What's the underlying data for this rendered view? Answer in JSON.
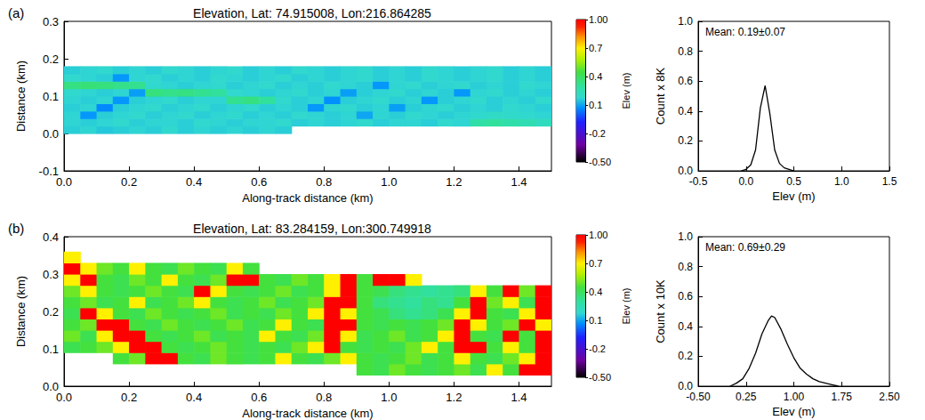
{
  "chart_data": [
    {
      "type": "heatmap",
      "panel": "(a)",
      "title": "Elevation, Lat: 74.915008, Lon:216.864285",
      "xlabel": "Along-track distance (km)",
      "ylabel": "Distance (km)",
      "xlim": [
        0,
        1.5
      ],
      "ylim": [
        -0.1,
        0.3
      ],
      "xticks": [
        {
          "value": 0,
          "label": "0.0"
        },
        0.2,
        0.4,
        0.6,
        0.8,
        {
          "value": 1,
          "label": "1.0"
        },
        1.2,
        1.4
      ],
      "yticks": [
        -0.1,
        {
          "value": 0,
          "label": "0.0"
        },
        0.1,
        0.2,
        0.3
      ],
      "x": [
        0.025,
        0.075,
        0.125,
        0.175,
        0.225,
        0.275,
        0.325,
        0.375,
        0.425,
        0.475,
        0.525,
        0.575,
        0.625,
        0.675,
        0.725,
        0.775,
        0.825,
        0.875,
        0.925,
        0.975,
        1.025,
        1.075,
        1.125,
        1.175,
        1.225,
        1.275,
        1.325,
        1.375,
        1.425,
        1.475
      ],
      "y": [
        0.01,
        0.03,
        0.05,
        0.07,
        0.09,
        0.11,
        0.13,
        0.15,
        0.17
      ],
      "values": [
        [
          0.16,
          0.17,
          0.15,
          0.16,
          0.17,
          0.16,
          0.18,
          0.16,
          0.17,
          0.16,
          0.17,
          0.16,
          0.17,
          0.16,
          null,
          null,
          null,
          null,
          null,
          null,
          null,
          null,
          null,
          null,
          null,
          null,
          null,
          null,
          null,
          null
        ],
        [
          0.17,
          0.16,
          0.17,
          0.18,
          0.16,
          0.17,
          0.17,
          0.16,
          0.18,
          0.17,
          0.16,
          0.17,
          0.17,
          0.18,
          0.16,
          0.17,
          0.16,
          0.17,
          0.18,
          0.16,
          0.17,
          0.17,
          0.16,
          0.18,
          0.17,
          0.28,
          0.3,
          0.27,
          0.25,
          0.22
        ],
        [
          0.17,
          0.08,
          0.16,
          0.17,
          0.18,
          0.16,
          0.17,
          0.18,
          0.16,
          0.17,
          0.18,
          0.16,
          0.17,
          0.16,
          0.18,
          0.17,
          0.16,
          0.17,
          0.1,
          0.17,
          0.16,
          0.18,
          0.17,
          0.16,
          0.17,
          0.18,
          0.2,
          0.19,
          0.18,
          0.17
        ],
        [
          0.16,
          0.17,
          0.06,
          0.16,
          0.17,
          0.18,
          0.16,
          0.17,
          0.18,
          0.16,
          0.17,
          0.18,
          0.16,
          0.17,
          0.16,
          0.08,
          0.17,
          0.18,
          0.16,
          0.17,
          0.09,
          0.16,
          0.17,
          0.18,
          0.16,
          0.17,
          0.16,
          0.18,
          0.17,
          0.16
        ],
        [
          0.17,
          0.16,
          0.17,
          0.08,
          0.16,
          0.17,
          0.18,
          0.16,
          0.17,
          0.17,
          0.32,
          0.34,
          0.3,
          0.18,
          0.16,
          0.17,
          0.07,
          0.16,
          0.17,
          0.18,
          0.16,
          0.17,
          0.08,
          0.16,
          0.17,
          0.18,
          0.16,
          0.17,
          0.16,
          0.18
        ],
        [
          0.18,
          0.17,
          0.16,
          0.17,
          0.09,
          0.35,
          0.33,
          0.34,
          0.32,
          0.3,
          0.18,
          0.17,
          0.16,
          0.17,
          0.18,
          0.16,
          0.17,
          0.09,
          0.16,
          0.17,
          0.18,
          0.16,
          0.17,
          0.16,
          0.08,
          0.17,
          0.18,
          0.16,
          0.17,
          0.16
        ],
        [
          0.34,
          0.36,
          0.35,
          0.33,
          0.32,
          0.18,
          0.17,
          0.16,
          0.17,
          0.18,
          0.16,
          0.17,
          0.18,
          0.16,
          0.17,
          0.16,
          0.18,
          0.17,
          0.16,
          0.08,
          0.17,
          0.18,
          0.16,
          0.17,
          0.18,
          0.16,
          0.17,
          0.16,
          0.18,
          0.17
        ],
        [
          0.18,
          0.17,
          0.16,
          0.08,
          0.17,
          0.18,
          0.16,
          0.17,
          0.16,
          0.18,
          0.17,
          0.16,
          0.17,
          0.18,
          0.16,
          0.17,
          0.16,
          0.17,
          0.18,
          0.16,
          0.17,
          0.16,
          0.18,
          0.17,
          0.16,
          0.17,
          0.18,
          0.16,
          0.17,
          0.16
        ],
        [
          0.16,
          0.17,
          0.18,
          0.16,
          0.17,
          0.16,
          0.18,
          0.17,
          0.16,
          0.17,
          0.18,
          0.16,
          0.17,
          0.16,
          0.18,
          0.17,
          0.16,
          0.17,
          0.18,
          0.16,
          0.17,
          0.16,
          0.18,
          0.17,
          0.16,
          0.17,
          0.18,
          0.16,
          0.17,
          0.16
        ]
      ],
      "colorbar": {
        "label": "Elev (m)",
        "range": [
          -0.5,
          1.0
        ],
        "ticks": [
          {
            "value": -0.5,
            "label": "-0.50"
          },
          -0.2,
          0.1,
          0.4,
          0.7,
          {
            "value": 1,
            "label": "1.00"
          }
        ]
      }
    },
    {
      "type": "line",
      "annotation": "Mean: 0.19±0.07",
      "xlabel": "Elev (m)",
      "ylabel": "Count x 8K",
      "xlim": [
        -0.5,
        1.5
      ],
      "ylim": [
        0,
        1
      ],
      "xticks": [
        -0.5,
        {
          "value": 0,
          "label": "0.0"
        },
        0.5,
        {
          "value": 1,
          "label": "1.0"
        },
        1.5
      ],
      "yticks": [
        {
          "value": 0,
          "label": "0.0"
        },
        0.2,
        0.4,
        0.6,
        0.8,
        {
          "value": 1,
          "label": "1.0"
        }
      ],
      "x": [
        -0.05,
        0.0,
        0.05,
        0.1,
        0.15,
        0.2,
        0.25,
        0.3,
        0.35,
        0.4,
        0.45,
        0.5
      ],
      "values": [
        0.0,
        0.01,
        0.04,
        0.14,
        0.42,
        0.57,
        0.38,
        0.14,
        0.05,
        0.02,
        0.01,
        0.0
      ]
    },
    {
      "type": "heatmap",
      "panel": "(b)",
      "title": "Elevation, Lat: 83.284159, Lon:300.749918",
      "xlabel": "Along-track distance (km)",
      "ylabel": "Distance (km)",
      "xlim": [
        0,
        1.5
      ],
      "ylim": [
        0,
        0.4
      ],
      "xticks": [
        {
          "value": 0,
          "label": "0.0"
        },
        0.2,
        0.4,
        0.6,
        0.8,
        {
          "value": 1,
          "label": "1.0"
        },
        1.2,
        1.4
      ],
      "yticks": [
        {
          "value": 0,
          "label": "0.0"
        },
        0.1,
        0.2,
        0.3,
        0.4
      ],
      "x": [
        0.025,
        0.075,
        0.125,
        0.175,
        0.225,
        0.275,
        0.325,
        0.375,
        0.425,
        0.475,
        0.525,
        0.575,
        0.625,
        0.675,
        0.725,
        0.775,
        0.825,
        0.875,
        0.925,
        0.975,
        1.025,
        1.075,
        1.125,
        1.175,
        1.225,
        1.275,
        1.325,
        1.375,
        1.425,
        1.475
      ],
      "y": [
        0.045,
        0.075,
        0.105,
        0.135,
        0.165,
        0.195,
        0.225,
        0.255,
        0.285,
        0.315,
        0.345
      ],
      "values": [
        [
          null,
          null,
          null,
          null,
          null,
          null,
          null,
          null,
          null,
          null,
          null,
          null,
          null,
          null,
          null,
          null,
          null,
          null,
          0.45,
          0.42,
          0.5,
          0.45,
          0.42,
          0.45,
          0.5,
          0.42,
          0.7,
          0.45,
          1.0,
          1.0
        ],
        [
          null,
          null,
          null,
          0.45,
          0.5,
          1.0,
          1.0,
          0.45,
          0.42,
          0.5,
          0.45,
          0.42,
          0.45,
          0.7,
          0.45,
          0.42,
          0.5,
          0.7,
          0.45,
          0.42,
          0.45,
          0.5,
          0.42,
          0.45,
          0.7,
          0.45,
          0.42,
          0.5,
          0.7,
          1.0
        ],
        [
          0.42,
          0.45,
          0.5,
          0.7,
          1.0,
          1.0,
          0.45,
          0.42,
          0.45,
          0.5,
          0.45,
          0.42,
          0.45,
          0.42,
          0.5,
          0.7,
          1.0,
          0.45,
          0.42,
          0.45,
          0.42,
          0.5,
          0.7,
          0.45,
          1.0,
          1.0,
          0.45,
          0.7,
          0.45,
          1.0
        ],
        [
          0.5,
          0.42,
          0.7,
          1.0,
          1.0,
          0.45,
          0.42,
          0.45,
          0.5,
          0.42,
          0.45,
          0.42,
          0.7,
          0.45,
          0.42,
          0.5,
          1.0,
          0.7,
          0.42,
          0.45,
          0.5,
          0.42,
          0.45,
          0.7,
          1.0,
          0.45,
          0.42,
          1.0,
          0.45,
          1.0
        ],
        [
          0.45,
          0.5,
          1.0,
          1.0,
          0.45,
          0.42,
          0.5,
          0.45,
          0.42,
          0.45,
          0.5,
          0.42,
          0.45,
          0.7,
          0.45,
          0.42,
          1.0,
          1.0,
          0.45,
          0.42,
          0.45,
          0.42,
          0.45,
          0.5,
          1.0,
          0.7,
          0.45,
          0.5,
          1.0,
          0.7
        ],
        [
          0.42,
          1.0,
          0.7,
          0.45,
          0.42,
          0.5,
          0.45,
          0.42,
          0.45,
          0.5,
          0.42,
          0.45,
          0.42,
          0.5,
          0.45,
          0.7,
          1.0,
          0.7,
          0.45,
          0.42,
          0.35,
          0.32,
          0.35,
          0.42,
          0.7,
          1.0,
          0.45,
          0.42,
          0.7,
          1.0
        ],
        [
          0.45,
          0.5,
          0.42,
          0.45,
          0.7,
          0.42,
          0.45,
          0.5,
          0.7,
          0.45,
          0.42,
          0.45,
          0.5,
          0.42,
          0.45,
          0.5,
          1.0,
          1.0,
          0.45,
          0.35,
          0.32,
          0.3,
          0.35,
          0.32,
          0.45,
          1.0,
          0.5,
          0.7,
          0.42,
          1.0
        ],
        [
          0.5,
          0.7,
          0.45,
          0.42,
          0.45,
          0.5,
          0.45,
          0.42,
          1.0,
          0.7,
          0.45,
          0.42,
          0.45,
          0.5,
          0.42,
          0.45,
          0.7,
          1.0,
          0.45,
          0.42,
          0.35,
          0.32,
          0.3,
          0.32,
          0.35,
          0.7,
          0.45,
          1.0,
          0.5,
          1.0
        ],
        [
          0.7,
          1.0,
          0.45,
          0.42,
          0.5,
          0.45,
          0.7,
          0.45,
          0.42,
          0.5,
          1.0,
          1.0,
          0.45,
          0.42,
          0.5,
          0.45,
          0.7,
          1.0,
          0.45,
          1.0,
          1.0,
          0.7,
          null,
          null,
          null,
          null,
          null,
          null,
          null,
          null
        ],
        [
          1.0,
          0.7,
          0.5,
          0.45,
          0.7,
          0.45,
          0.42,
          0.5,
          0.45,
          0.42,
          0.7,
          0.45,
          null,
          null,
          null,
          null,
          null,
          null,
          null,
          null,
          null,
          null,
          null,
          null,
          null,
          null,
          null,
          null,
          null,
          null
        ],
        [
          0.7,
          null,
          null,
          null,
          null,
          null,
          null,
          null,
          null,
          null,
          null,
          null,
          null,
          null,
          null,
          null,
          null,
          null,
          null,
          null,
          null,
          null,
          null,
          null,
          null,
          null,
          null,
          null,
          null,
          null
        ]
      ],
      "colorbar": {
        "label": "Elev (m)",
        "range": [
          -0.5,
          1.0
        ],
        "ticks": [
          {
            "value": -0.5,
            "label": "-0.50"
          },
          -0.2,
          0.1,
          0.4,
          0.7,
          {
            "value": 1,
            "label": "1.00"
          }
        ]
      }
    },
    {
      "type": "line",
      "annotation": "Mean: 0.69±0.29",
      "xlabel": "Elev (m)",
      "ylabel": "Count x 10K",
      "xlim": [
        -0.5,
        2.5
      ],
      "ylim": [
        0,
        1
      ],
      "xticks": [
        {
          "value": -0.5,
          "label": "-0.50"
        },
        0.25,
        {
          "value": 1,
          "label": "1.00"
        },
        1.75,
        {
          "value": 2.5,
          "label": "2.50"
        }
      ],
      "yticks": [
        {
          "value": 0,
          "label": "0.0"
        },
        0.2,
        0.4,
        0.6,
        0.8,
        {
          "value": 1,
          "label": "1.0"
        }
      ],
      "x": [
        0.0,
        0.1,
        0.2,
        0.3,
        0.4,
        0.5,
        0.6,
        0.65,
        0.7,
        0.8,
        0.9,
        1.0,
        1.1,
        1.2,
        1.3,
        1.4,
        1.5,
        1.6,
        1.7
      ],
      "values": [
        0.0,
        0.02,
        0.05,
        0.12,
        0.22,
        0.35,
        0.44,
        0.47,
        0.46,
        0.38,
        0.28,
        0.19,
        0.12,
        0.08,
        0.05,
        0.03,
        0.02,
        0.01,
        0.0
      ]
    }
  ]
}
